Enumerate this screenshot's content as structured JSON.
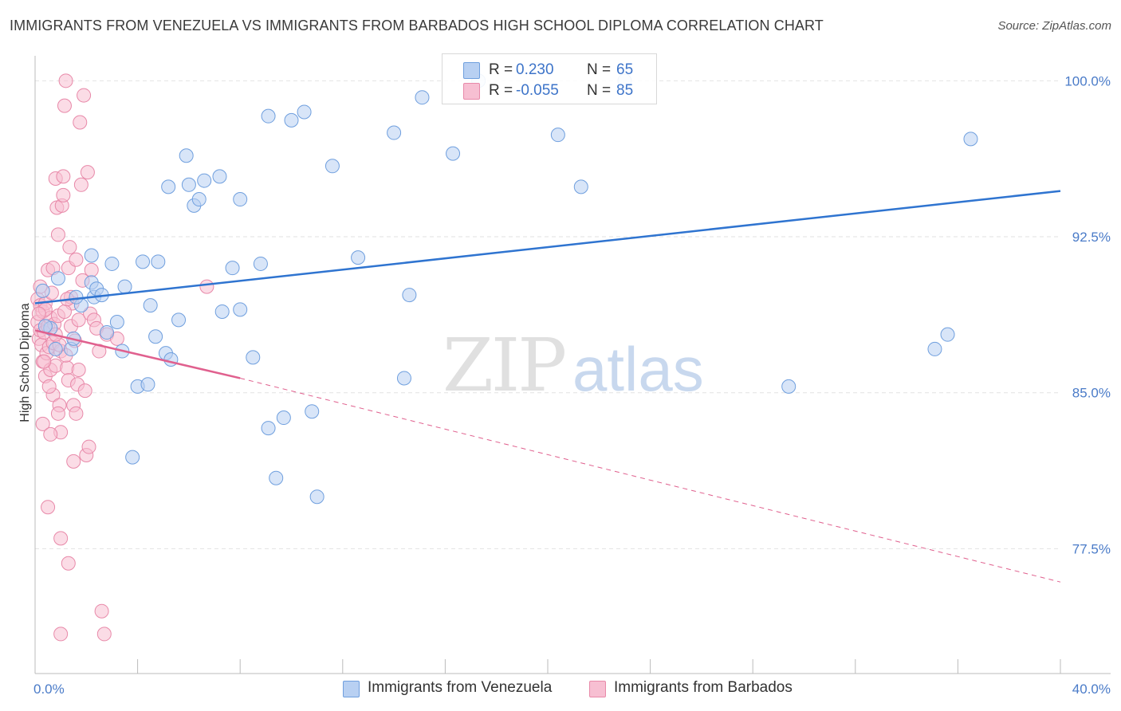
{
  "title": "IMMIGRANTS FROM VENEZUELA VS IMMIGRANTS FROM BARBADOS HIGH SCHOOL DIPLOMA CORRELATION CHART",
  "source": "Source: ZipAtlas.com",
  "watermark": "ZIPatlas",
  "colors": {
    "blue_fill": "#b8d0f2",
    "blue_stroke": "#6f9fde",
    "blue_line": "#2f74d0",
    "pink_fill": "#f7bfd2",
    "pink_stroke": "#e889a9",
    "pink_line": "#e0608e",
    "tick_text": "#4a7bc8"
  },
  "legend": {
    "rows": [
      {
        "r_label": "R =",
        "r_value": "0.230",
        "n_label": "N =",
        "n_value": "65"
      },
      {
        "r_label": "R =",
        "r_value": "-0.055",
        "n_label": "N =",
        "n_value": "85"
      }
    ]
  },
  "bottom_legend": {
    "venezuela": "Immigrants from Venezuela",
    "barbados": "Immigrants from Barbados"
  },
  "chart_data": {
    "type": "scatter",
    "xlabel": "",
    "ylabel": "High School Diploma",
    "xlim": [
      0,
      40
    ],
    "ylim": [
      71.5,
      101.2
    ],
    "x_ticks": [
      "0.0%",
      "40.0%"
    ],
    "y_ticks": [
      {
        "value": 100.0,
        "label": "100.0%"
      },
      {
        "value": 92.5,
        "label": "92.5%"
      },
      {
        "value": 85.0,
        "label": "85.0%"
      },
      {
        "value": 77.5,
        "label": "77.5%"
      }
    ],
    "grid": "horizontal dashed",
    "legend_position": "top-center",
    "series": [
      {
        "name": "Immigrants from Venezuela",
        "color": "#6f9fde",
        "trend": {
          "x": [
            0,
            40
          ],
          "y": [
            89.3,
            94.7
          ],
          "style": "solid"
        },
        "points": [
          [
            0.3,
            89.9
          ],
          [
            0.6,
            88.1
          ],
          [
            0.9,
            90.5
          ],
          [
            1.4,
            87.1
          ],
          [
            1.5,
            87.6
          ],
          [
            1.8,
            89.2
          ],
          [
            1.6,
            89.6
          ],
          [
            2.2,
            90.3
          ],
          [
            2.3,
            89.6
          ],
          [
            2.4,
            90.0
          ],
          [
            2.6,
            89.7
          ],
          [
            2.2,
            91.6
          ],
          [
            3.0,
            91.2
          ],
          [
            2.8,
            87.9
          ],
          [
            3.2,
            88.4
          ],
          [
            3.4,
            87.0
          ],
          [
            3.5,
            90.1
          ],
          [
            3.8,
            81.9
          ],
          [
            4.0,
            85.3
          ],
          [
            4.2,
            91.3
          ],
          [
            4.4,
            85.4
          ],
          [
            4.5,
            89.2
          ],
          [
            4.7,
            87.7
          ],
          [
            4.8,
            91.3
          ],
          [
            5.1,
            86.9
          ],
          [
            5.3,
            86.6
          ],
          [
            5.2,
            94.9
          ],
          [
            5.9,
            96.4
          ],
          [
            5.6,
            88.5
          ],
          [
            6.0,
            95.0
          ],
          [
            6.2,
            94.0
          ],
          [
            6.4,
            94.3
          ],
          [
            6.6,
            95.2
          ],
          [
            7.2,
            95.4
          ],
          [
            7.3,
            88.9
          ],
          [
            7.7,
            91.0
          ],
          [
            8.0,
            94.3
          ],
          [
            8.0,
            89.0
          ],
          [
            8.5,
            86.7
          ],
          [
            8.8,
            91.2
          ],
          [
            9.1,
            83.3
          ],
          [
            9.1,
            98.3
          ],
          [
            9.4,
            80.9
          ],
          [
            9.7,
            83.8
          ],
          [
            10.0,
            98.1
          ],
          [
            10.5,
            98.5
          ],
          [
            10.8,
            84.1
          ],
          [
            11.0,
            80.0
          ],
          [
            11.6,
            95.9
          ],
          [
            12.6,
            91.5
          ],
          [
            14.0,
            97.5
          ],
          [
            14.4,
            85.7
          ],
          [
            14.6,
            89.7
          ],
          [
            15.1,
            99.2
          ],
          [
            16.3,
            96.5
          ],
          [
            17.3,
            100.0
          ],
          [
            20.4,
            97.4
          ],
          [
            21.3,
            94.9
          ],
          [
            23.0,
            100.0
          ],
          [
            29.4,
            85.3
          ],
          [
            35.1,
            87.1
          ],
          [
            35.6,
            87.8
          ],
          [
            36.5,
            97.2
          ],
          [
            0.4,
            88.2
          ],
          [
            0.8,
            87.1
          ]
        ]
      },
      {
        "name": "Immigrants from Barbados",
        "color": "#e889a9",
        "trend": {
          "x": [
            0,
            8.0
          ],
          "y": [
            88.0,
            85.7
          ],
          "style": "solid",
          "extended_to": [
            40,
            75.9
          ],
          "extended_style": "dashed"
        },
        "points": [
          [
            0.1,
            89.5
          ],
          [
            0.1,
            88.4
          ],
          [
            0.15,
            87.6
          ],
          [
            0.2,
            89.2
          ],
          [
            0.2,
            88.0
          ],
          [
            0.25,
            87.3
          ],
          [
            0.3,
            86.5
          ],
          [
            0.3,
            88.9
          ],
          [
            0.35,
            87.9
          ],
          [
            0.4,
            85.8
          ],
          [
            0.4,
            89.3
          ],
          [
            0.45,
            86.9
          ],
          [
            0.5,
            88.2
          ],
          [
            0.5,
            90.9
          ],
          [
            0.55,
            87.2
          ],
          [
            0.6,
            86.1
          ],
          [
            0.6,
            88.6
          ],
          [
            0.65,
            89.8
          ],
          [
            0.7,
            84.9
          ],
          [
            0.7,
            87.4
          ],
          [
            0.75,
            88.3
          ],
          [
            0.8,
            86.3
          ],
          [
            0.8,
            95.3
          ],
          [
            0.85,
            93.9
          ],
          [
            0.9,
            92.6
          ],
          [
            0.9,
            88.7
          ],
          [
            0.95,
            84.4
          ],
          [
            1.0,
            87.0
          ],
          [
            1.0,
            83.1
          ],
          [
            1.05,
            94.0
          ],
          [
            1.1,
            95.4
          ],
          [
            1.1,
            94.5
          ],
          [
            1.15,
            98.8
          ],
          [
            1.2,
            100.0
          ],
          [
            1.25,
            86.2
          ],
          [
            1.3,
            85.6
          ],
          [
            1.3,
            91.0
          ],
          [
            1.35,
            92.0
          ],
          [
            1.4,
            88.2
          ],
          [
            1.45,
            89.3
          ],
          [
            1.5,
            81.7
          ],
          [
            1.5,
            84.4
          ],
          [
            1.55,
            87.5
          ],
          [
            1.6,
            91.4
          ],
          [
            1.6,
            84.0
          ],
          [
            1.65,
            85.4
          ],
          [
            1.7,
            88.5
          ],
          [
            1.75,
            98.0
          ],
          [
            1.8,
            95.0
          ],
          [
            1.85,
            90.4
          ],
          [
            1.9,
            99.3
          ],
          [
            1.95,
            85.1
          ],
          [
            2.0,
            82.0
          ],
          [
            2.05,
            95.6
          ],
          [
            2.1,
            82.4
          ],
          [
            2.15,
            88.8
          ],
          [
            2.2,
            90.9
          ],
          [
            2.3,
            88.5
          ],
          [
            2.4,
            88.1
          ],
          [
            2.5,
            87.0
          ],
          [
            2.6,
            74.5
          ],
          [
            2.7,
            73.4
          ],
          [
            2.8,
            87.8
          ],
          [
            3.2,
            87.6
          ],
          [
            1.0,
            78.0
          ],
          [
            1.3,
            76.8
          ],
          [
            1.0,
            73.4
          ],
          [
            0.5,
            79.5
          ],
          [
            6.7,
            90.1
          ],
          [
            0.3,
            83.5
          ],
          [
            0.6,
            83.0
          ],
          [
            0.9,
            84.0
          ],
          [
            1.2,
            86.8
          ],
          [
            1.4,
            89.6
          ],
          [
            1.7,
            86.1
          ],
          [
            0.2,
            90.1
          ],
          [
            0.4,
            89.0
          ],
          [
            0.7,
            91.0
          ],
          [
            0.95,
            87.3
          ],
          [
            1.15,
            88.9
          ],
          [
            1.25,
            89.5
          ],
          [
            0.35,
            86.5
          ],
          [
            0.55,
            85.3
          ],
          [
            0.15,
            88.8
          ],
          [
            0.8,
            87.8
          ]
        ]
      }
    ]
  }
}
